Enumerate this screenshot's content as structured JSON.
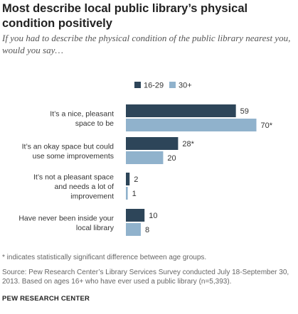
{
  "title": "Most describe local public library’s physical condition positively",
  "subtitle": "If you had to describe the physical condition of the public library nearest you, would you say…",
  "chart_data": {
    "type": "bar",
    "orientation": "horizontal",
    "categories": [
      [
        "It’s a nice, pleasant",
        "space to be"
      ],
      [
        "It’s an okay space but could",
        "use some improvements"
      ],
      [
        "It’s not a pleasant space",
        "and needs a lot of",
        "improvement"
      ],
      [
        "Have never been inside your",
        "local library"
      ]
    ],
    "series": [
      {
        "name": "16-29",
        "color": "#2d4559",
        "values": [
          59,
          28,
          2,
          10
        ],
        "labels": [
          "59",
          "28*",
          "2",
          "10"
        ]
      },
      {
        "name": "30+",
        "color": "#90b2cc",
        "values": [
          70,
          20,
          1,
          8
        ],
        "labels": [
          "70*",
          "20",
          "1",
          "8"
        ]
      }
    ],
    "legend_position": "top",
    "xlim": [
      0,
      70
    ],
    "grid": false
  },
  "note": "* indicates statistically significant difference between age groups.",
  "source": "Source: Pew Research Center’s Library Services Survey conducted July 18-September 30, 2013. Based on ages 16+ who have ever used a public library (n=5,393).",
  "brand": "PEW RESEARCH CENTER"
}
